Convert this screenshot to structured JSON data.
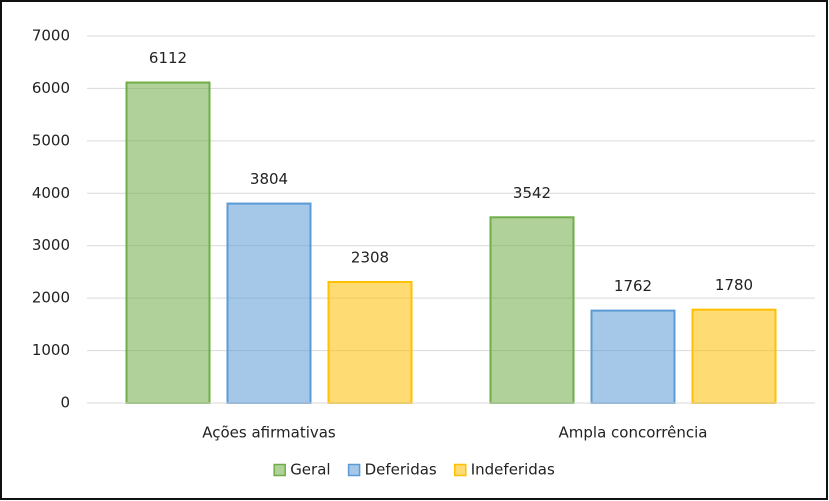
{
  "chart_data": {
    "type": "bar",
    "categories": [
      "Ações afirmativas",
      "Ampla concorrência"
    ],
    "series": [
      {
        "name": "Geral",
        "color": "#70ad47",
        "values": [
          6112,
          3542
        ]
      },
      {
        "name": "Deferidas",
        "color": "#5b9bd5",
        "values": [
          3804,
          1762
        ]
      },
      {
        "name": "Indeferidas",
        "color": "#ffc000",
        "values": [
          2308,
          1780
        ]
      }
    ],
    "ylim": [
      0,
      7000
    ],
    "yticks": [
      0,
      1000,
      2000,
      3000,
      4000,
      5000,
      6000,
      7000
    ],
    "grid": true,
    "legend": "bottom"
  }
}
